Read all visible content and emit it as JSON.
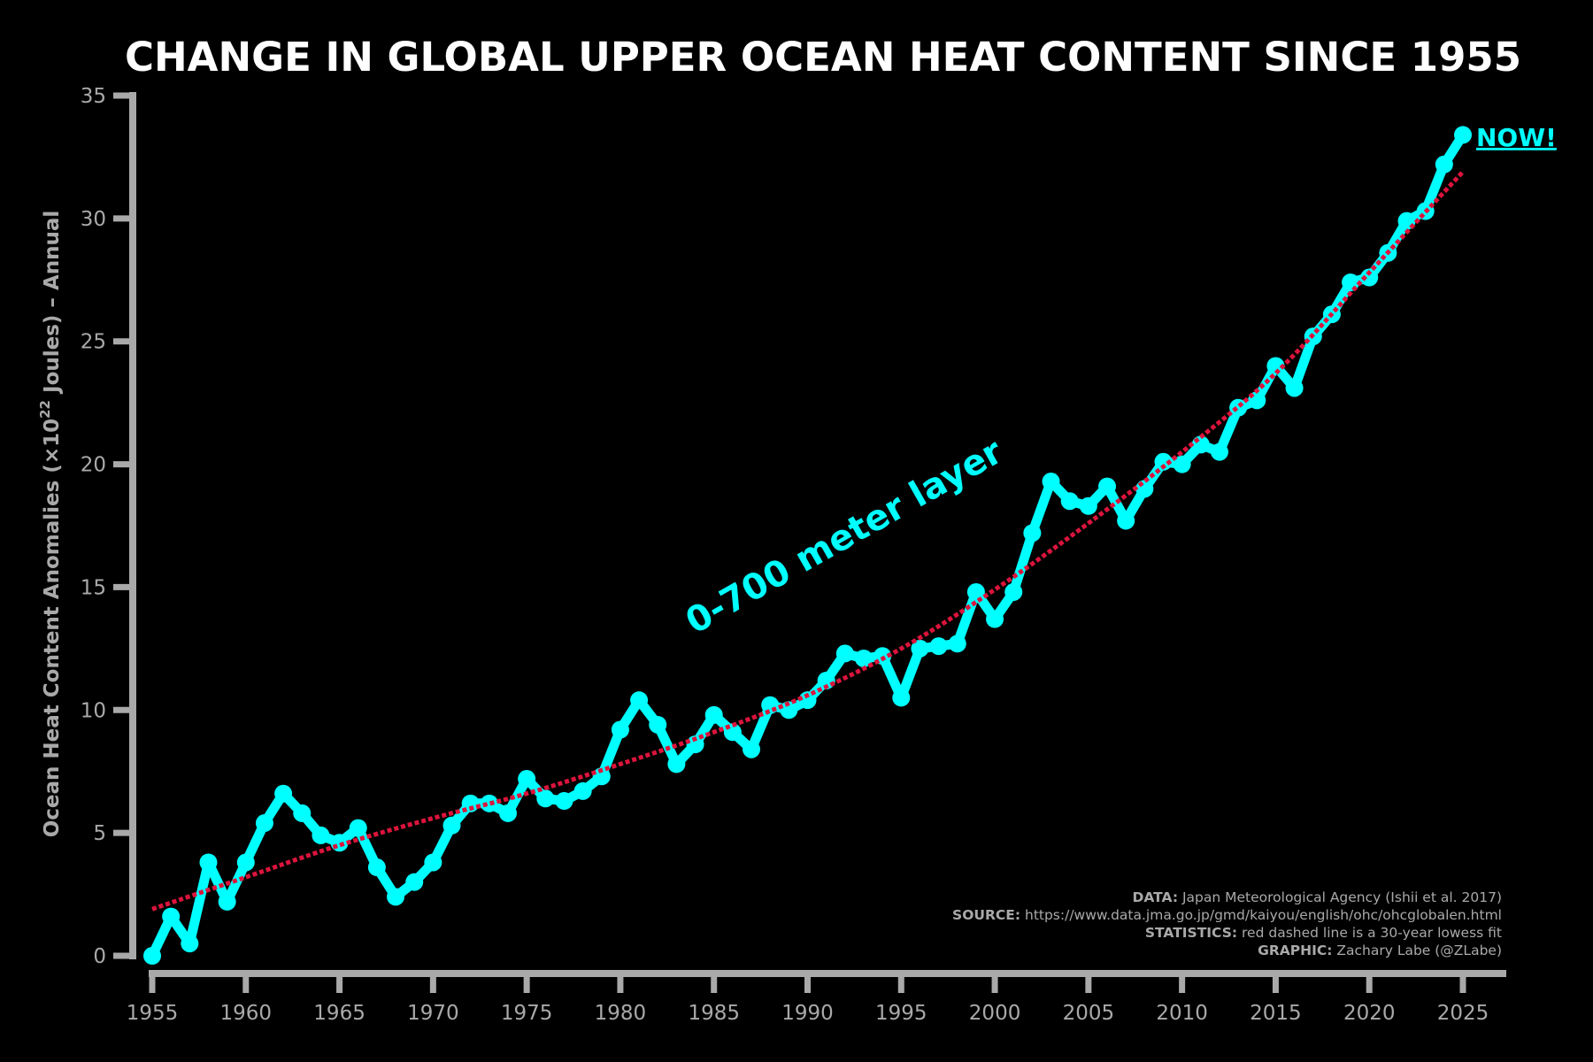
{
  "chart_data": {
    "type": "line",
    "title": "CHANGE IN GLOBAL UPPER OCEAN HEAT CONTENT SINCE 1955",
    "ylabel_main": "Ocean Heat Content Anomalies (×10",
    "ylabel_exp": "22",
    "ylabel_tail": " Joules) – Annual",
    "xlabel": "",
    "xlim": [
      1955,
      2025
    ],
    "ylim": [
      0,
      35
    ],
    "x_ticks": [
      1955,
      1960,
      1965,
      1970,
      1975,
      1980,
      1985,
      1990,
      1995,
      2000,
      2005,
      2010,
      2015,
      2020,
      2025
    ],
    "y_ticks": [
      0,
      5,
      10,
      15,
      20,
      25,
      30,
      35
    ],
    "grid": false,
    "series": [
      {
        "name": "0-700 meter layer",
        "color": "#00ffff",
        "style": "solid line with circle markers",
        "x": [
          1955,
          1956,
          1957,
          1958,
          1959,
          1960,
          1961,
          1962,
          1963,
          1964,
          1965,
          1966,
          1967,
          1968,
          1969,
          1970,
          1971,
          1972,
          1973,
          1974,
          1975,
          1976,
          1977,
          1978,
          1979,
          1980,
          1981,
          1982,
          1983,
          1984,
          1985,
          1986,
          1987,
          1988,
          1989,
          1990,
          1991,
          1992,
          1993,
          1994,
          1995,
          1996,
          1997,
          1998,
          1999,
          2000,
          2001,
          2002,
          2003,
          2004,
          2005,
          2006,
          2007,
          2008,
          2009,
          2010,
          2011,
          2012,
          2013,
          2014,
          2015,
          2016,
          2017,
          2018,
          2019,
          2020,
          2021,
          2022,
          2023,
          2024,
          2025
        ],
        "values": [
          0.0,
          1.6,
          0.5,
          3.8,
          2.2,
          3.8,
          5.4,
          6.6,
          5.8,
          4.9,
          4.6,
          5.2,
          3.6,
          2.4,
          3.0,
          3.8,
          5.3,
          6.2,
          6.2,
          5.8,
          7.2,
          6.4,
          6.3,
          6.7,
          7.3,
          9.2,
          10.4,
          9.4,
          7.8,
          8.6,
          9.8,
          9.1,
          8.4,
          10.2,
          10.0,
          10.4,
          11.2,
          12.3,
          12.1,
          12.2,
          10.5,
          12.5,
          12.6,
          12.7,
          14.8,
          13.7,
          14.8,
          17.2,
          19.3,
          18.5,
          18.3,
          19.1,
          17.7,
          19.0,
          20.1,
          20.0,
          20.8,
          20.5,
          22.3,
          22.6,
          24.0,
          23.1,
          25.2,
          26.1,
          27.4,
          27.6,
          28.6,
          29.9,
          30.3,
          32.2,
          33.4
        ]
      },
      {
        "name": "30-year lowess fit",
        "color": "#dc143c",
        "style": "dotted line",
        "x": [
          1955,
          1960,
          1965,
          1970,
          1975,
          1980,
          1985,
          1990,
          1995,
          2000,
          2005,
          2010,
          2015,
          2020,
          2025
        ],
        "values": [
          1.9,
          3.2,
          4.5,
          5.6,
          6.6,
          7.8,
          9.1,
          10.6,
          12.5,
          14.9,
          17.6,
          20.5,
          23.7,
          27.8,
          31.9
        ]
      }
    ],
    "annotations": {
      "layer_label": "0-700 meter layer",
      "now_label": "NOW!"
    },
    "credits": [
      {
        "key": "DATA:",
        "text": " Japan Meteorological Agency (Ishii et al. 2017)"
      },
      {
        "key": "SOURCE:",
        "text": " https://www.data.jma.go.jp/gmd/kaiyou/english/ohc/ohcglobalen.html"
      },
      {
        "key": "STATISTICS:",
        "text": " red dashed line is a 30-year lowess fit"
      },
      {
        "key": "GRAPHIC:",
        "text": " Zachary Labe (@ZLabe)"
      }
    ],
    "colors": {
      "background": "#000000",
      "axis": "#a9a9a9",
      "title": "#ffffff"
    }
  }
}
